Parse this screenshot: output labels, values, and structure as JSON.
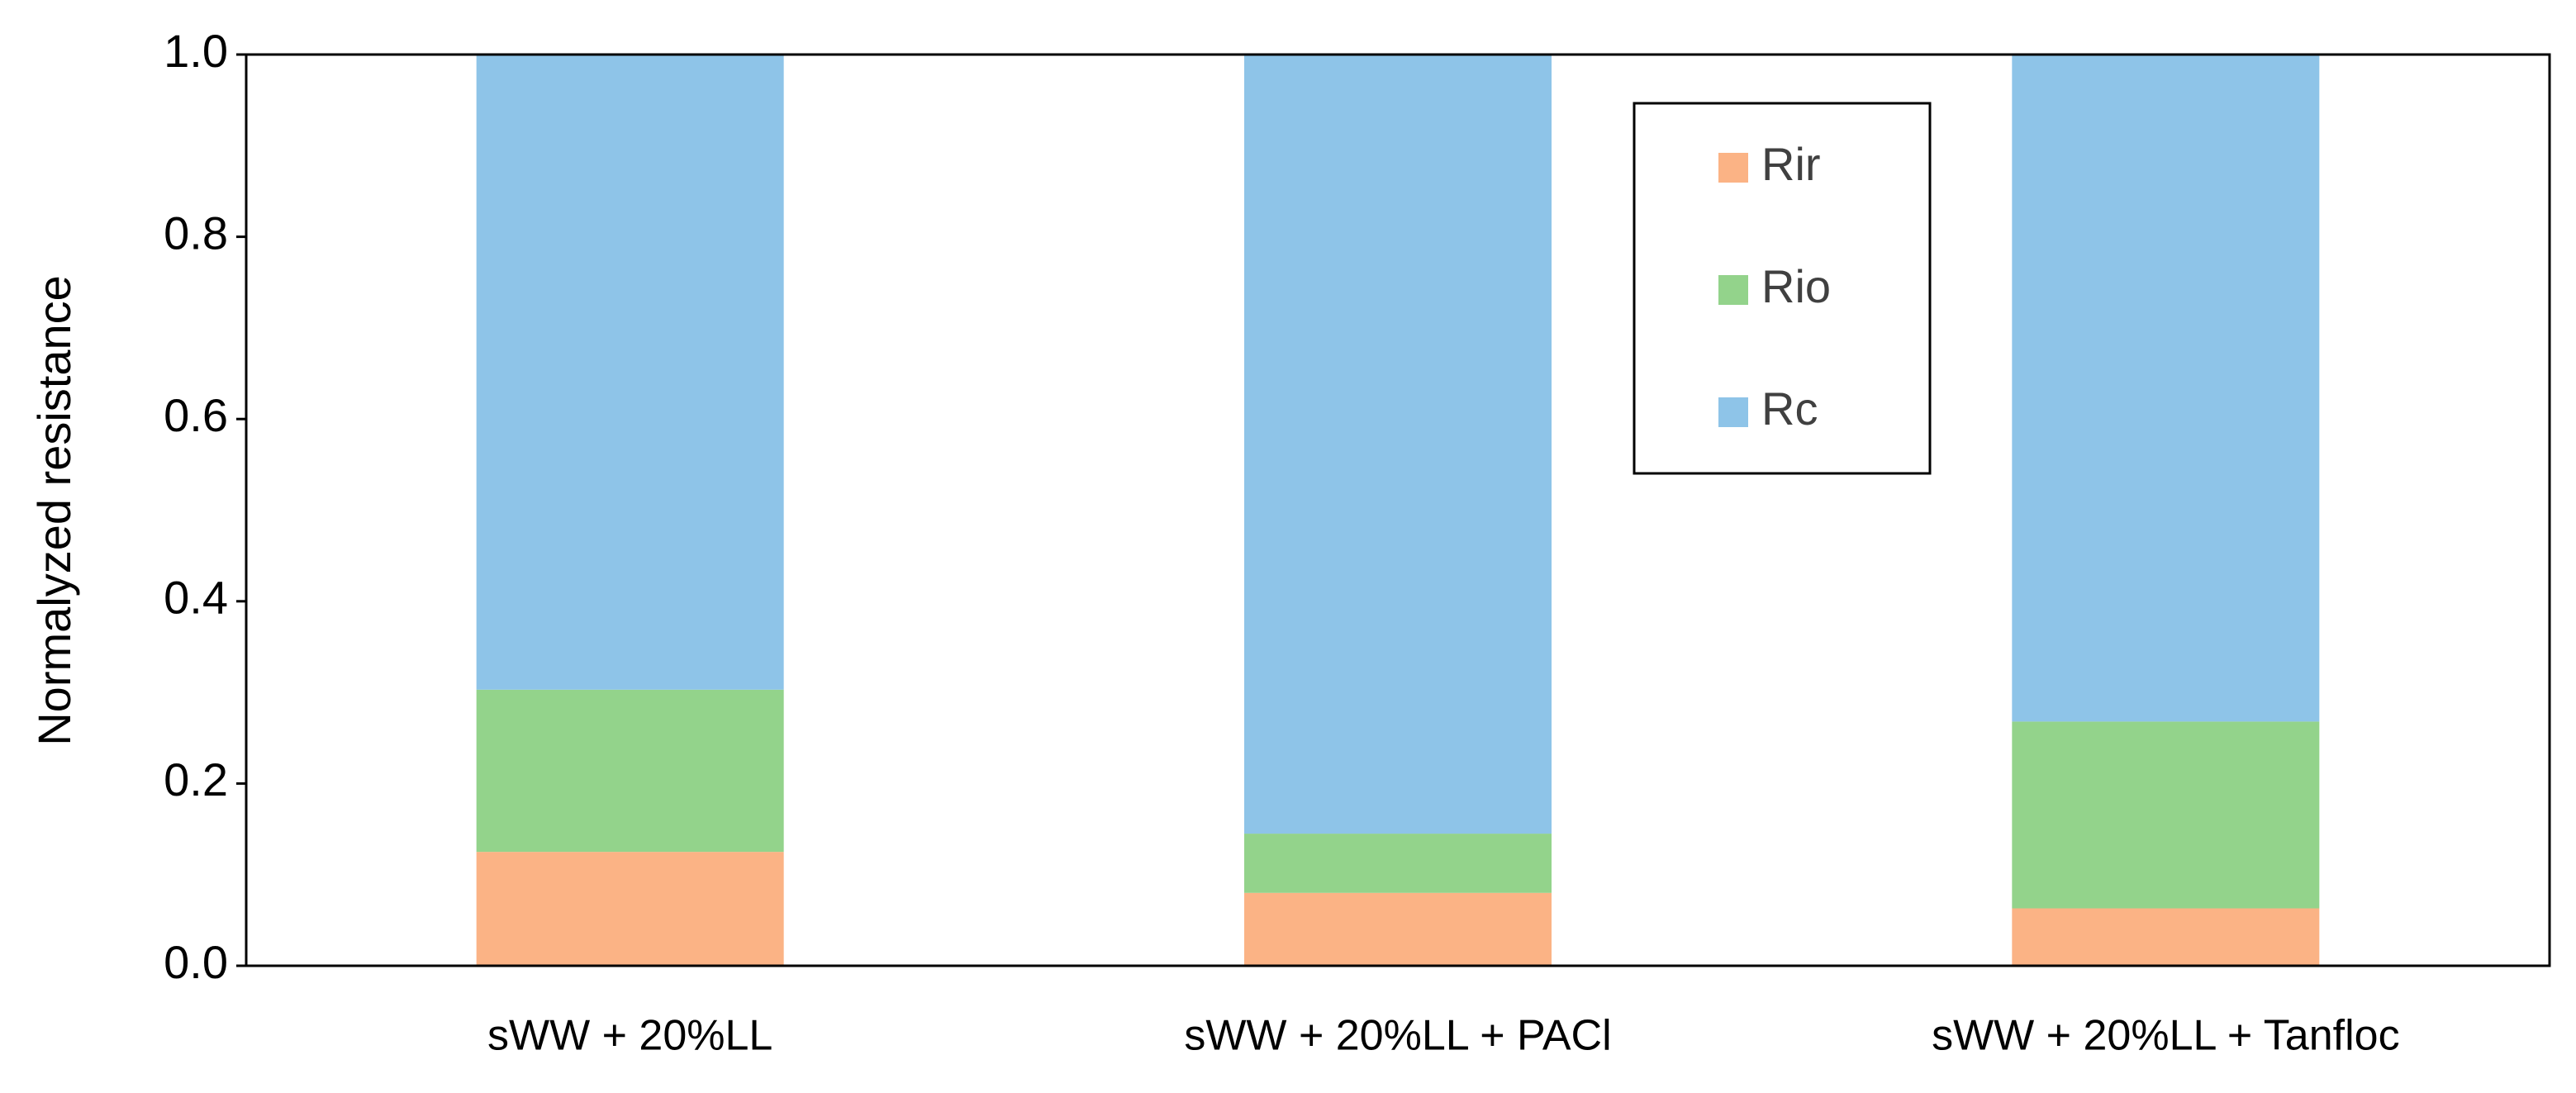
{
  "chart_data": {
    "type": "stacked_bar",
    "y_label": "Normalyzed resistance",
    "categories": [
      "sWW + 20%LL",
      "sWW + 20%LL + PACl",
      "sWW + 20%LL + Tanfloc"
    ],
    "series": [
      {
        "name": "Rir",
        "color": "#fbb385",
        "values": [
          0.125,
          0.08,
          0.063
        ]
      },
      {
        "name": "Rio",
        "color": "#93d38b",
        "values": [
          0.178,
          0.065,
          0.205
        ]
      },
      {
        "name": "Rc",
        "color": "#8ec4e8",
        "values": [
          0.697,
          0.855,
          0.732
        ]
      }
    ],
    "ylim": [
      0,
      1
    ],
    "yticks": [
      {
        "value": 0,
        "label": "0.0"
      },
      0.2,
      0.4,
      0.6,
      0.8,
      {
        "value": 1,
        "label": "1.0"
      }
    ],
    "grid": false,
    "legend": "upper-right"
  }
}
